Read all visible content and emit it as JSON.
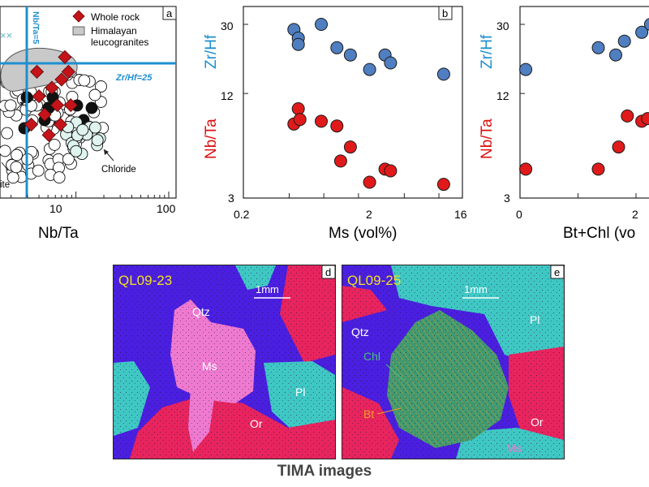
{
  "colors": {
    "blue": "#1f8fcf",
    "red": "#dd1111",
    "dot_blue": "#4f7fc0",
    "dot_red": "#e01a1a",
    "diamond": "#c4141a",
    "qtz": "#4a1fe0",
    "pl": "#3fc7c4",
    "or": "#e8245e",
    "ms": "#ee7ad0",
    "chl": "#3f9a72",
    "bt": "#f0a020",
    "label_yellow": "#f2e21c"
  },
  "panel_a": {
    "letter": "a",
    "xlabel": "Nb/Ta",
    "x_ticks": [
      "10",
      "100"
    ],
    "legend": {
      "whole_rock": "Whole rock",
      "leuco_line1": "Himalayan",
      "leuco_line2": "leucogranites"
    },
    "refline_h_label": "Zr/Hf=25",
    "refline_v_label": "Nb/Ta=5",
    "annot_chloride": "Chloride",
    "annot_ite": "ite",
    "whole_rock_points": [
      {
        "nbta": 3.3,
        "zrhf": 18
      },
      {
        "nbta": 4.0,
        "zrhf": 21
      },
      {
        "nbta": 4.6,
        "zrhf": 19
      },
      {
        "nbta": 5.5,
        "zrhf": 22
      },
      {
        "nbta": 6.3,
        "zrhf": 20
      },
      {
        "nbta": 7.0,
        "zrhf": 23
      },
      {
        "nbta": 7.6,
        "zrhf": 26
      },
      {
        "nbta": 8.3,
        "zrhf": 24
      },
      {
        "nbta": 8.8,
        "zrhf": 20
      },
      {
        "nbta": 5.1,
        "zrhf": 17
      },
      {
        "nbta": 3.8,
        "zrhf": 24
      },
      {
        "nbta": 6.8,
        "zrhf": 18
      }
    ]
  },
  "panel_b": {
    "letter": "b",
    "xlabel": "Ms (vol%)",
    "x_ticks": [
      "0.2",
      "2",
      "16"
    ],
    "y_ticks": [
      "30",
      "12",
      "3"
    ],
    "ylabel_top": "Zr/Hf",
    "ylabel_bottom": "Nb/Ta",
    "zrhf": [
      {
        "x": 0.55,
        "y": 28
      },
      {
        "x": 0.6,
        "y": 25
      },
      {
        "x": 0.6,
        "y": 23
      },
      {
        "x": 0.95,
        "y": 30
      },
      {
        "x": 1.3,
        "y": 22
      },
      {
        "x": 1.7,
        "y": 20
      },
      {
        "x": 2.5,
        "y": 16.5
      },
      {
        "x": 3.4,
        "y": 20
      },
      {
        "x": 3.8,
        "y": 18
      },
      {
        "x": 11,
        "y": 15.5
      }
    ],
    "nbta": [
      {
        "x": 0.55,
        "y": 8
      },
      {
        "x": 0.6,
        "y": 9.8
      },
      {
        "x": 0.62,
        "y": 8.5
      },
      {
        "x": 0.95,
        "y": 8.3
      },
      {
        "x": 1.3,
        "y": 7.8
      },
      {
        "x": 1.4,
        "y": 4.9
      },
      {
        "x": 1.7,
        "y": 5.9
      },
      {
        "x": 2.5,
        "y": 3.7
      },
      {
        "x": 3.4,
        "y": 4.4
      },
      {
        "x": 3.8,
        "y": 4.3
      },
      {
        "x": 11,
        "y": 3.6
      }
    ]
  },
  "panel_c": {
    "xlabel": "Bt+Chl (vo",
    "x_ticks": [
      "0",
      "2"
    ],
    "y_ticks": [
      "30",
      "12",
      "3"
    ],
    "ylabel_top": "Zr/Hf",
    "ylabel_bottom": "Nb/Ta",
    "zrhf": [
      {
        "x": 0.1,
        "y": 16.5
      },
      {
        "x": 1.35,
        "y": 22
      },
      {
        "x": 1.65,
        "y": 20
      },
      {
        "x": 1.8,
        "y": 24
      },
      {
        "x": 2.1,
        "y": 27
      },
      {
        "x": 2.25,
        "y": 30
      },
      {
        "x": 2.38,
        "y": 29
      }
    ],
    "nbta": [
      {
        "x": 0.1,
        "y": 4.4
      },
      {
        "x": 1.35,
        "y": 4.4
      },
      {
        "x": 1.7,
        "y": 5.9
      },
      {
        "x": 1.85,
        "y": 8.9
      },
      {
        "x": 2.1,
        "y": 8.3
      },
      {
        "x": 2.2,
        "y": 8.6
      },
      {
        "x": 2.35,
        "y": 8.1
      }
    ]
  },
  "panel_d": {
    "letter": "d",
    "sample": "QL09-23",
    "scale": "1mm",
    "minerals": {
      "qtz": "Qtz",
      "ms": "Ms",
      "pl": "Pl",
      "or": "Or"
    }
  },
  "panel_e": {
    "letter": "e",
    "sample": "QL09-25",
    "scale": "1mm",
    "minerals": {
      "qtz": "Qtz",
      "pl": "Pl",
      "chl": "Chl",
      "bt": "Bt",
      "or": "Or",
      "ms": "Ms"
    }
  },
  "caption": "TIMA images"
}
